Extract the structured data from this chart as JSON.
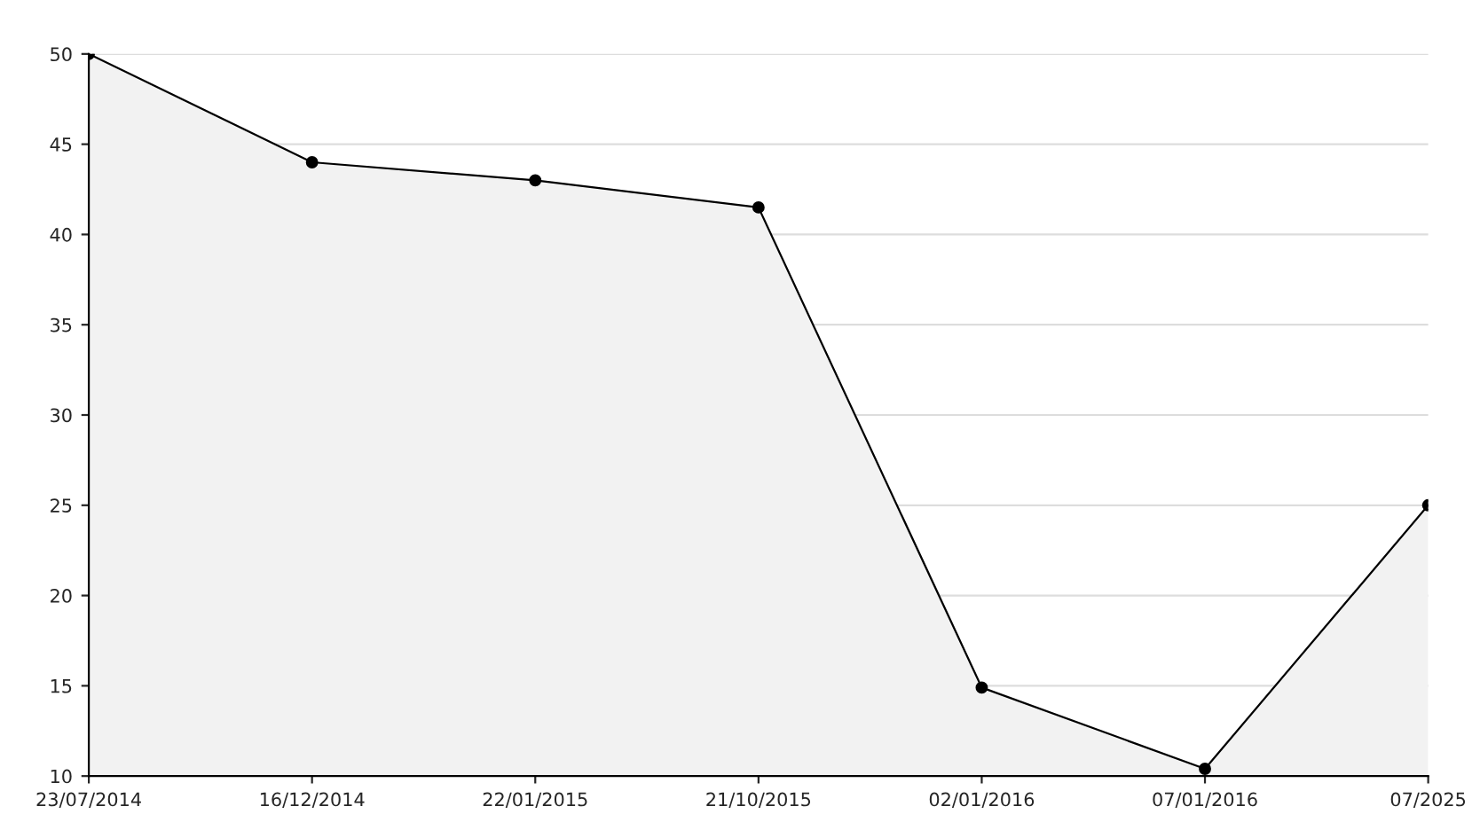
{
  "chart_data": {
    "type": "area",
    "categories": [
      "23/07/2014",
      "16/12/2014",
      "22/01/2015",
      "21/10/2015",
      "02/01/2016",
      "07/01/2016",
      "07/2025"
    ],
    "series": [
      {
        "color": "#000000",
        "values": [
          50,
          44,
          43,
          41.5,
          14.9,
          10.4,
          25
        ]
      }
    ],
    "ylim": [
      10,
      50
    ],
    "yticks": [
      10,
      15,
      20,
      25,
      30,
      35,
      40,
      45,
      50
    ],
    "grid": "y",
    "marker": "circle",
    "line_style": "solid",
    "legend": false
  }
}
